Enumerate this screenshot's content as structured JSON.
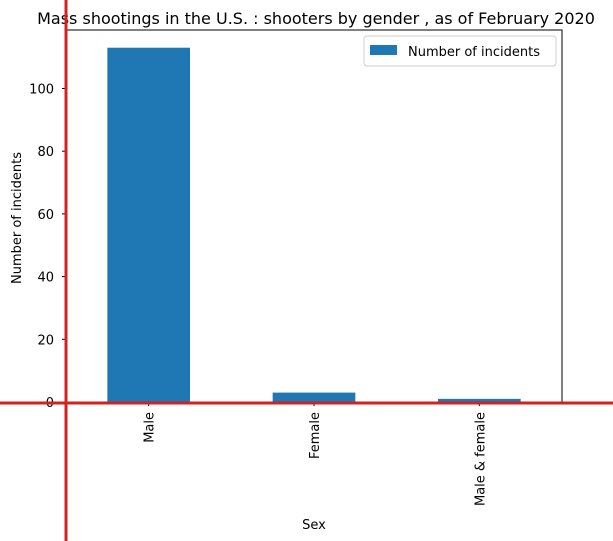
{
  "chart_data": {
    "type": "bar",
    "title": "Mass shootings in the U.S. : shooters by gender , as of February 2020",
    "xlabel": "Sex",
    "ylabel": "Number of incidents",
    "categories": [
      "Male",
      "Female",
      "Male & female"
    ],
    "series": [
      {
        "name": "Number of incidents",
        "values": [
          113,
          3,
          1
        ]
      }
    ],
    "ylim": [
      0,
      118.65
    ],
    "yticks": [
      0,
      20,
      40,
      60,
      80,
      100
    ],
    "legend_position": "top-right",
    "grid": false,
    "colors": {
      "bar": "#1f77b4",
      "axis_highlight": "#d62020"
    }
  }
}
